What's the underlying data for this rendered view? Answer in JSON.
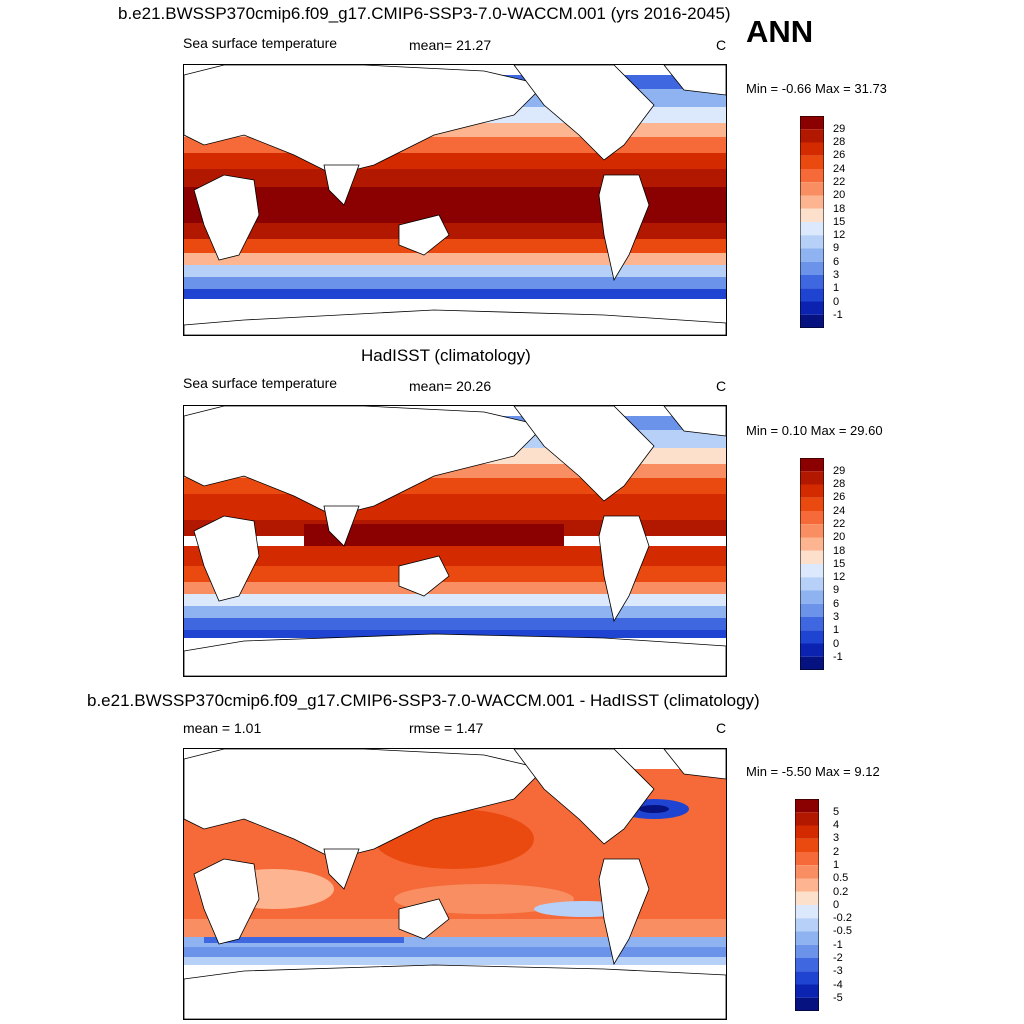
{
  "season": "ANN",
  "panels": [
    {
      "id": "model",
      "title": "b.e21.BWSSP370cmip6.f09_g17.CMIP6-SSP3-7.0-WACCM.001 (yrs 2016-2045)",
      "left_label": "Sea surface temperature",
      "center_label": "mean=  21.27",
      "unit": "C",
      "minmax": "Min =  -0.66 Max =  31.73",
      "colorbar": {
        "labels": [
          "29",
          "28",
          "26",
          "24",
          "22",
          "20",
          "18",
          "15",
          "12",
          "9",
          "6",
          "3",
          "1",
          "0",
          "-1"
        ],
        "colors": [
          "#8b0000",
          "#b21800",
          "#d42a00",
          "#ea4a10",
          "#f56a38",
          "#f98e62",
          "#fcb590",
          "#fde0cc",
          "#dce8fb",
          "#b7d0f7",
          "#8fb3f1",
          "#6b93ea",
          "#3f68e0",
          "#1f44d2",
          "#0b23b0",
          "#061280"
        ]
      }
    },
    {
      "id": "obs",
      "title": "HadISST (climatology)",
      "left_label": "Sea surface temperature",
      "center_label": "mean=  20.26",
      "unit": "C",
      "minmax": "Min =   0.10 Max =  29.60",
      "colorbar": {
        "labels": [
          "29",
          "28",
          "26",
          "24",
          "22",
          "20",
          "18",
          "15",
          "12",
          "9",
          "6",
          "3",
          "1",
          "0",
          "-1"
        ],
        "colors": [
          "#8b0000",
          "#b21800",
          "#d42a00",
          "#ea4a10",
          "#f56a38",
          "#f98e62",
          "#fcb590",
          "#fde0cc",
          "#dce8fb",
          "#b7d0f7",
          "#8fb3f1",
          "#6b93ea",
          "#3f68e0",
          "#1f44d2",
          "#0b23b0",
          "#061280"
        ]
      }
    },
    {
      "id": "diff",
      "title": "b.e21.BWSSP370cmip6.f09_g17.CMIP6-SSP3-7.0-WACCM.001 - HadISST (climatology)",
      "left_label": "mean =   1.01",
      "center_label": "rmse =   1.47",
      "unit": "C",
      "minmax": "Min =  -5.50 Max =   9.12",
      "colorbar": {
        "labels": [
          "5",
          "4",
          "3",
          "2",
          "1",
          "0.5",
          "0.2",
          "0",
          "-0.2",
          "-0.5",
          "-1",
          "-2",
          "-3",
          "-4",
          "-5"
        ],
        "colors": [
          "#8b0000",
          "#b21800",
          "#d42a00",
          "#ea4a10",
          "#f56a38",
          "#f98e62",
          "#fcb590",
          "#fde0cc",
          "#dce8fb",
          "#b7d0f7",
          "#8fb3f1",
          "#6b93ea",
          "#3f68e0",
          "#1f44d2",
          "#0b23b0",
          "#061280"
        ]
      }
    }
  ]
}
